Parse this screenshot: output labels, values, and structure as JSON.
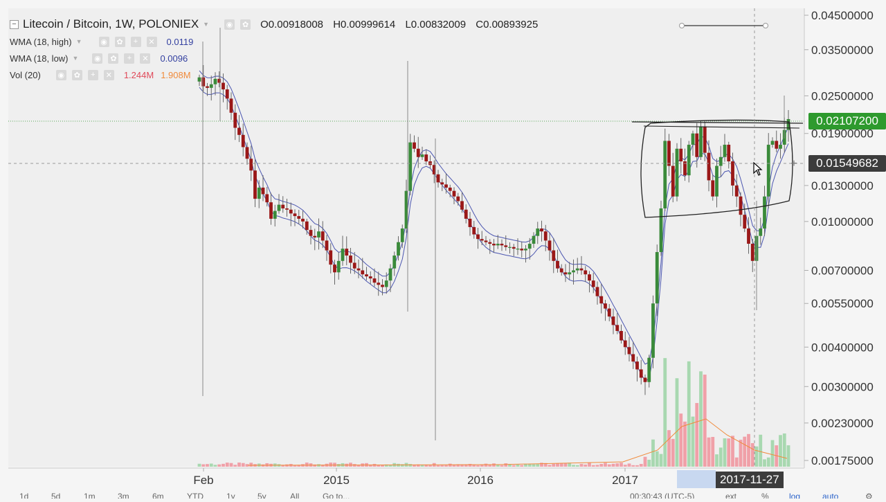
{
  "header": {
    "symbol_title": "Litecoin / Bitcoin, 1W, POLONIEX",
    "ohlc": [
      {
        "label": "O",
        "value": "0.00918008"
      },
      {
        "label": "H",
        "value": "0.00999614"
      },
      {
        "label": "L",
        "value": "0.00832009"
      },
      {
        "label": "C",
        "value": "0.00893925"
      }
    ]
  },
  "indicators": [
    {
      "name": "WMA (18, high)",
      "value": "0.0119",
      "color": "#3340a0"
    },
    {
      "name": "WMA (18, low)",
      "value": "0.0096",
      "color": "#3340a0"
    },
    {
      "name": "Vol (20)",
      "value": "1.244M",
      "value2": "1.908M",
      "color": "#e04a5a",
      "color2": "#f08a3a"
    }
  ],
  "price_axis": {
    "ticks": [
      "0.04500000",
      "0.03500000",
      "0.02500000",
      "0.01900000",
      "0.01300000",
      "0.01000000",
      "0.00700000",
      "0.00550000",
      "0.00400000",
      "0.00300000",
      "0.00230000",
      "0.00175000"
    ],
    "tick_values": [
      0.045,
      0.035,
      0.025,
      0.019,
      0.013,
      0.01,
      0.007,
      0.0055,
      0.004,
      0.003,
      0.0023,
      0.00175
    ],
    "scale": "log",
    "last_price_label": "0.02107200",
    "crosshair_price_label": "0.01549682"
  },
  "time_axis": {
    "ticks": [
      "Feb",
      "2015",
      "2016",
      "2017"
    ],
    "crosshair_date": "2017-11-27"
  },
  "bottom_toolbar": {
    "ranges": [
      "1d",
      "5d",
      "1m",
      "3m",
      "6m",
      "YTD",
      "1y",
      "5y",
      "All"
    ],
    "goto": "Go to...",
    "clock": "00:30:43 (UTC-5)",
    "options": [
      "ext",
      "%",
      "log",
      "auto"
    ]
  },
  "colors": {
    "up": "#3a8a3a",
    "down": "#9a1818",
    "wma": "#4a55b0",
    "vol_up": "#a8d8b0",
    "vol_down": "#f0a0a8",
    "vol_ma": "#f08a3a",
    "last_price": "#2e9a2e",
    "background": "#f0f0f0"
  },
  "chart_data": {
    "type": "candlestick",
    "scale": "log",
    "series_close": [
      0.0286,
      0.0268,
      0.0265,
      0.0272,
      0.0283,
      0.0275,
      0.0262,
      0.0245,
      0.0221,
      0.0198,
      0.0188,
      0.0172,
      0.0158,
      0.0145,
      0.0118,
      0.0128,
      0.0122,
      0.0115,
      0.0102,
      0.0108,
      0.0113,
      0.011,
      0.0109,
      0.0106,
      0.0104,
      0.0102,
      0.01,
      0.0094,
      0.009,
      0.0089,
      0.0093,
      0.0087,
      0.0081,
      0.0073,
      0.0069,
      0.0075,
      0.0082,
      0.0078,
      0.0074,
      0.0071,
      0.007,
      0.0068,
      0.0067,
      0.0066,
      0.0064,
      0.0063,
      0.0062,
      0.0065,
      0.0071,
      0.0078,
      0.0086,
      0.0095,
      0.0125,
      0.0178,
      0.017,
      0.016,
      0.0163,
      0.0155,
      0.0151,
      0.0141,
      0.0133,
      0.0131,
      0.0128,
      0.0125,
      0.012,
      0.0116,
      0.0109,
      0.0102,
      0.0096,
      0.0091,
      0.0088,
      0.0087,
      0.0086,
      0.0085,
      0.0084,
      0.0085,
      0.0084,
      0.0083,
      0.0083,
      0.0082,
      0.0082,
      0.0081,
      0.0082,
      0.0085,
      0.009,
      0.0095,
      0.0093,
      0.0087,
      0.0081,
      0.0075,
      0.0071,
      0.0069,
      0.0068,
      0.0069,
      0.007,
      0.0071,
      0.007,
      0.0068,
      0.0065,
      0.0062,
      0.0058,
      0.0055,
      0.0053,
      0.005,
      0.0047,
      0.0045,
      0.0042,
      0.004,
      0.0038,
      0.0036,
      0.0034,
      0.0032,
      0.0031,
      0.0037,
      0.0055,
      0.008,
      0.011,
      0.018,
      0.015,
      0.012,
      0.017,
      0.0155,
      0.014,
      0.0175,
      0.019,
      0.016,
      0.02,
      0.0165,
      0.0135,
      0.012,
      0.015,
      0.016,
      0.0175,
      0.0155,
      0.013,
      0.012,
      0.0105,
      0.0095,
      0.0085,
      0.0075,
      0.009,
      0.0095,
      0.012,
      0.0175,
      0.018,
      0.017,
      0.0175,
      0.0195,
      0.0211
    ]
  }
}
